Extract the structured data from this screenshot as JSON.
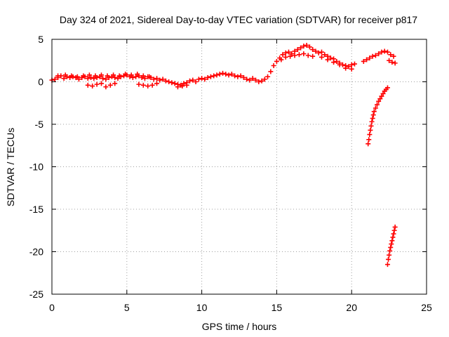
{
  "chart_data": {
    "type": "scatter",
    "title": "Day 324 of 2021, Sidereal Day-to-day VTEC variation (SDTVAR) for receiver p817",
    "xlabel": "GPS time / hours",
    "ylabel": "SDTVAR / TECUs",
    "xlim": [
      0,
      25
    ],
    "ylim": [
      -25,
      5
    ],
    "xticks": [
      0,
      5,
      10,
      15,
      20,
      25
    ],
    "yticks": [
      -25,
      -20,
      -15,
      -10,
      -5,
      0,
      5
    ],
    "grid": true,
    "marker": "plus",
    "color": "#ff0000",
    "series": [
      {
        "points": [
          [
            0.0,
            0.2
          ],
          [
            0.2,
            0.3
          ],
          [
            0.4,
            0.5
          ],
          [
            0.6,
            0.7
          ],
          [
            0.8,
            0.4
          ],
          [
            1.0,
            0.6
          ],
          [
            1.2,
            0.5
          ],
          [
            1.4,
            0.6
          ],
          [
            1.6,
            0.5
          ],
          [
            1.8,
            0.3
          ],
          [
            2.0,
            0.5
          ],
          [
            2.2,
            0.6
          ],
          [
            2.4,
            0.4
          ],
          [
            2.6,
            0.5
          ],
          [
            2.8,
            0.4
          ],
          [
            3.0,
            0.5
          ],
          [
            3.2,
            0.6
          ],
          [
            3.4,
            0.4
          ],
          [
            3.6,
            0.3
          ],
          [
            3.8,
            0.5
          ],
          [
            4.0,
            0.6
          ],
          [
            4.2,
            0.5
          ],
          [
            4.4,
            0.4
          ],
          [
            4.6,
            0.6
          ],
          [
            4.8,
            0.7
          ],
          [
            5.0,
            0.8
          ],
          [
            5.2,
            0.6
          ],
          [
            5.4,
            0.5
          ],
          [
            5.6,
            0.6
          ],
          [
            5.8,
            0.7
          ],
          [
            6.0,
            0.5
          ],
          [
            6.2,
            0.4
          ],
          [
            6.4,
            0.6
          ],
          [
            6.6,
            0.5
          ],
          [
            6.8,
            0.3
          ],
          [
            7.0,
            0.4
          ],
          [
            7.2,
            0.2
          ],
          [
            7.4,
            0.3
          ],
          [
            7.6,
            0.1
          ],
          [
            7.8,
            0.0
          ],
          [
            8.0,
            -0.1
          ],
          [
            8.2,
            -0.2
          ],
          [
            8.4,
            -0.3
          ],
          [
            8.6,
            -0.4
          ],
          [
            8.8,
            -0.2
          ],
          [
            9.0,
            -0.1
          ],
          [
            9.2,
            0.1
          ],
          [
            9.4,
            0.2
          ],
          [
            9.6,
            0.0
          ],
          [
            9.8,
            0.3
          ],
          [
            10.0,
            0.4
          ],
          [
            10.2,
            0.3
          ],
          [
            10.4,
            0.5
          ],
          [
            10.6,
            0.6
          ],
          [
            10.8,
            0.7
          ],
          [
            11.0,
            0.8
          ],
          [
            11.2,
            0.9
          ],
          [
            11.4,
            1.0
          ],
          [
            11.6,
            0.9
          ],
          [
            11.8,
            0.8
          ],
          [
            12.0,
            0.9
          ],
          [
            12.2,
            0.7
          ],
          [
            12.4,
            0.6
          ],
          [
            12.6,
            0.7
          ],
          [
            12.8,
            0.5
          ],
          [
            13.0,
            0.3
          ],
          [
            13.2,
            0.2
          ],
          [
            13.4,
            0.4
          ],
          [
            13.6,
            0.2
          ],
          [
            13.8,
            0.0
          ],
          [
            14.0,
            0.1
          ],
          [
            14.2,
            0.3
          ],
          [
            14.4,
            0.6
          ],
          [
            14.6,
            1.2
          ],
          [
            14.8,
            1.9
          ],
          [
            15.0,
            2.4
          ],
          [
            15.2,
            2.8
          ],
          [
            15.4,
            3.2
          ],
          [
            15.6,
            3.4
          ],
          [
            15.8,
            3.5
          ],
          [
            16.0,
            3.3
          ],
          [
            16.2,
            3.6
          ],
          [
            16.4,
            3.8
          ],
          [
            16.6,
            4.0
          ],
          [
            16.8,
            4.2
          ],
          [
            17.0,
            4.3
          ],
          [
            17.2,
            4.1
          ],
          [
            17.4,
            3.8
          ],
          [
            17.6,
            3.6
          ],
          [
            17.8,
            3.4
          ],
          [
            18.0,
            3.5
          ],
          [
            18.2,
            3.2
          ],
          [
            18.4,
            3.0
          ],
          [
            18.6,
            2.8
          ],
          [
            18.8,
            2.7
          ],
          [
            19.0,
            2.4
          ],
          [
            19.2,
            2.2
          ],
          [
            19.4,
            2.0
          ],
          [
            19.6,
            1.9
          ],
          [
            19.8,
            1.8
          ],
          [
            20.0,
            2.0
          ],
          [
            20.2,
            2.1
          ],
          [
            20.8,
            2.4
          ],
          [
            21.0,
            2.6
          ],
          [
            21.2,
            2.8
          ],
          [
            21.4,
            3.0
          ],
          [
            21.6,
            3.1
          ],
          [
            21.8,
            3.3
          ],
          [
            22.0,
            3.5
          ],
          [
            22.2,
            3.6
          ],
          [
            22.4,
            3.5
          ],
          [
            22.6,
            3.2
          ],
          [
            22.8,
            3.0
          ]
        ]
      },
      {
        "points": [
          [
            0.4,
            0.7
          ],
          [
            0.9,
            0.8
          ],
          [
            1.3,
            0.7
          ],
          [
            1.7,
            0.6
          ],
          [
            2.1,
            0.7
          ],
          [
            2.5,
            0.8
          ],
          [
            2.9,
            0.7
          ],
          [
            3.3,
            0.8
          ],
          [
            3.7,
            0.7
          ],
          [
            4.1,
            0.8
          ],
          [
            4.5,
            0.7
          ],
          [
            4.9,
            0.9
          ],
          [
            5.3,
            0.8
          ],
          [
            5.7,
            0.9
          ],
          [
            6.1,
            0.7
          ],
          [
            6.5,
            0.6
          ]
        ]
      },
      {
        "points": [
          [
            2.4,
            -0.4
          ],
          [
            2.7,
            -0.5
          ],
          [
            3.0,
            -0.3
          ],
          [
            3.3,
            -0.2
          ],
          [
            3.6,
            -0.6
          ],
          [
            3.9,
            -0.4
          ],
          [
            4.2,
            -0.2
          ],
          [
            5.8,
            -0.3
          ],
          [
            6.1,
            -0.4
          ],
          [
            6.4,
            -0.5
          ],
          [
            6.7,
            -0.4
          ],
          [
            7.0,
            -0.2
          ],
          [
            8.4,
            -0.6
          ],
          [
            8.7,
            -0.5
          ],
          [
            9.0,
            -0.4
          ]
        ]
      },
      {
        "points": [
          [
            15.3,
            2.6
          ],
          [
            15.6,
            2.9
          ],
          [
            15.9,
            3.0
          ],
          [
            16.2,
            3.1
          ],
          [
            16.5,
            3.2
          ],
          [
            16.8,
            3.3
          ],
          [
            17.1,
            3.1
          ],
          [
            17.4,
            3.0
          ],
          [
            18.0,
            2.9
          ],
          [
            18.4,
            2.6
          ],
          [
            18.8,
            2.3
          ],
          [
            19.2,
            2.0
          ],
          [
            19.6,
            1.6
          ],
          [
            20.0,
            1.5
          ],
          [
            22.5,
            2.5
          ],
          [
            22.7,
            2.3
          ],
          [
            22.9,
            2.2
          ]
        ]
      },
      {
        "points": [
          [
            21.1,
            -7.3
          ],
          [
            21.15,
            -6.8
          ],
          [
            21.2,
            -6.2
          ],
          [
            21.25,
            -5.7
          ],
          [
            21.3,
            -5.2
          ],
          [
            21.35,
            -4.7
          ],
          [
            21.4,
            -4.3
          ],
          [
            21.45,
            -3.9
          ],
          [
            21.5,
            -3.5
          ],
          [
            21.6,
            -3.1
          ],
          [
            21.7,
            -2.7
          ],
          [
            21.8,
            -2.3
          ],
          [
            21.9,
            -2.0
          ],
          [
            22.0,
            -1.7
          ],
          [
            22.1,
            -1.4
          ],
          [
            22.2,
            -1.1
          ],
          [
            22.3,
            -0.9
          ],
          [
            22.4,
            -0.7
          ]
        ]
      },
      {
        "points": [
          [
            22.4,
            -21.5
          ],
          [
            22.45,
            -20.9
          ],
          [
            22.5,
            -20.4
          ],
          [
            22.55,
            -19.9
          ],
          [
            22.6,
            -19.5
          ],
          [
            22.65,
            -19.1
          ],
          [
            22.7,
            -18.7
          ],
          [
            22.75,
            -18.3
          ],
          [
            22.8,
            -17.9
          ],
          [
            22.85,
            -17.5
          ],
          [
            22.9,
            -17.1
          ]
        ]
      }
    ]
  }
}
